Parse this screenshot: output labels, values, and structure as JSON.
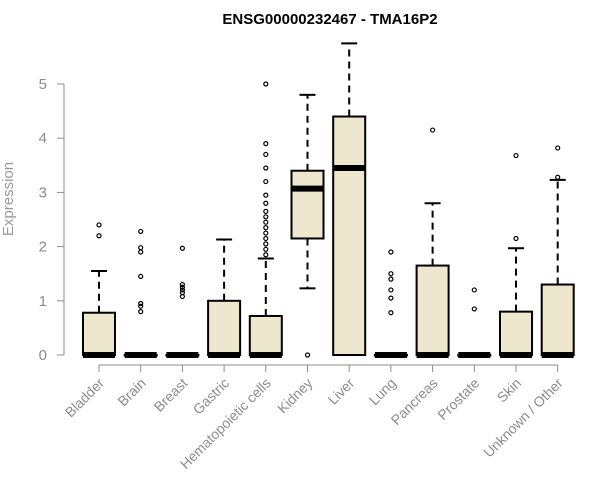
{
  "chart_data": {
    "type": "boxplot",
    "title": "ENSG00000232467 - TMA16P2",
    "xlabel": "",
    "ylabel": "Expression",
    "ylim": [
      0,
      5.8
    ],
    "y_ticks": [
      0,
      1,
      2,
      3,
      4,
      5
    ],
    "grid": false,
    "box_color": "#ede7cd",
    "categories": [
      "Bladder",
      "Brain",
      "Breast",
      "Gastric",
      "Hematopoietic cells",
      "Kidney",
      "Liver",
      "Lung",
      "Pancreas",
      "Prostate",
      "Skin",
      "Unknown / Other"
    ],
    "boxes": [
      {
        "category": "Bladder",
        "min": 0,
        "q1": 0,
        "median": 0,
        "q3": 0.78,
        "max": 1.55,
        "outliers": [
          2.2,
          2.4
        ]
      },
      {
        "category": "Brain",
        "min": 0,
        "q1": 0,
        "median": 0,
        "q3": 0,
        "max": 0,
        "outliers": [
          0.8,
          0.9,
          0.95,
          1.45,
          1.9,
          1.98,
          2.28
        ]
      },
      {
        "category": "Breast",
        "min": 0,
        "q1": 0,
        "median": 0,
        "q3": 0,
        "max": 0,
        "outliers": [
          1.08,
          1.15,
          1.2,
          1.25,
          1.3,
          1.97
        ]
      },
      {
        "category": "Gastric",
        "min": 0,
        "q1": 0,
        "median": 0,
        "q3": 1.0,
        "max": 2.13,
        "outliers": []
      },
      {
        "category": "Hematopoietic cells",
        "min": 0,
        "q1": 0,
        "median": 0,
        "q3": 0.72,
        "max": 1.78,
        "outliers": [
          1.85,
          1.95,
          2.05,
          2.15,
          2.25,
          2.35,
          2.45,
          2.55,
          2.65,
          2.8,
          2.95,
          3.2,
          3.45,
          3.7,
          3.9,
          5.0
        ]
      },
      {
        "category": "Kidney",
        "min": 1.23,
        "q1": 2.15,
        "median": 3.07,
        "q3": 3.4,
        "max": 4.8,
        "outliers": [
          0
        ]
      },
      {
        "category": "Liver",
        "min": 0,
        "q1": 0,
        "median": 3.45,
        "q3": 4.4,
        "max": 5.75,
        "outliers": []
      },
      {
        "category": "Lung",
        "min": 0,
        "q1": 0,
        "median": 0,
        "q3": 0,
        "max": 0,
        "outliers": [
          0.78,
          1.05,
          1.2,
          1.4,
          1.5,
          1.9
        ]
      },
      {
        "category": "Pancreas",
        "min": 0,
        "q1": 0,
        "median": 0,
        "q3": 1.65,
        "max": 2.8,
        "outliers": [
          4.15
        ]
      },
      {
        "category": "Prostate",
        "min": 0,
        "q1": 0,
        "median": 0,
        "q3": 0,
        "max": 0,
        "outliers": [
          0.85,
          1.2
        ]
      },
      {
        "category": "Skin",
        "min": 0,
        "q1": 0,
        "median": 0,
        "q3": 0.8,
        "max": 1.97,
        "outliers": [
          2.15,
          3.68
        ]
      },
      {
        "category": "Unknown / Other",
        "min": 0,
        "q1": 0,
        "median": 0,
        "q3": 1.3,
        "max": 3.23,
        "outliers": [
          3.28,
          3.82
        ]
      }
    ]
  }
}
